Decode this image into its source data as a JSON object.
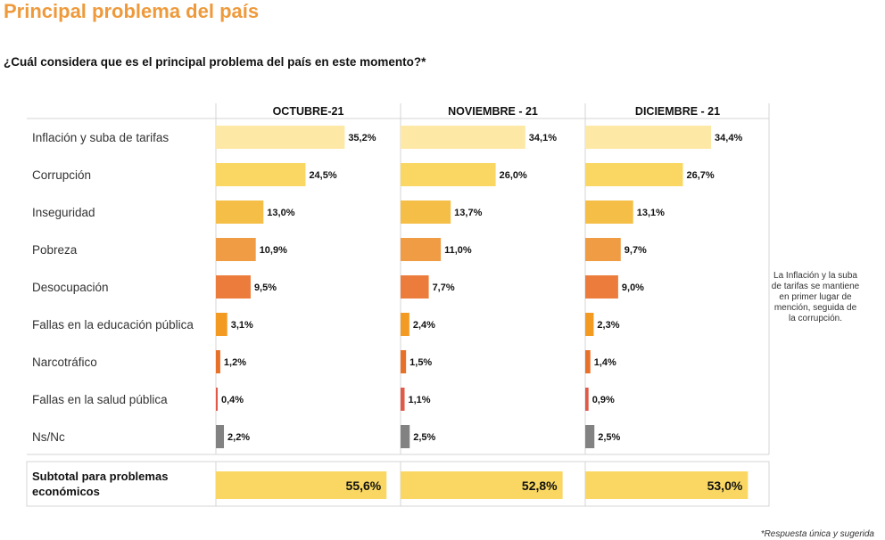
{
  "title": "Principal problema del país",
  "question": "¿Cuál considera que es el principal problema del país en este momento?*",
  "note": "La Inflación y la suba de tarifas se mantiene en primer lugar de mención, seguida de la corrupción.",
  "footnote": "*Respuesta única y sugerida",
  "chart_data": {
    "type": "bar",
    "orientation": "horizontal",
    "grid": false,
    "categories": [
      "Inflación y suba de tarifas",
      "Corrupción",
      "Inseguridad",
      "Pobreza",
      "Desocupación",
      "Fallas en la educación pública",
      "Narcotráfico",
      "Fallas en la salud pública",
      "Ns/Nc"
    ],
    "colors": [
      "#fde8a6",
      "#f9d762",
      "#f5bf47",
      "#ef9c45",
      "#ec7c3b",
      "#f39a22",
      "#e8712a",
      "#e05a48",
      "#828282"
    ],
    "series": [
      {
        "name": "OCTUBRE-21",
        "values": [
          35.2,
          24.5,
          13.0,
          10.9,
          9.5,
          3.1,
          1.2,
          0.4,
          2.2
        ],
        "labels": [
          "35,2%",
          "24,5%",
          "13,0%",
          "10,9%",
          "9,5%",
          "3,1%",
          "1,2%",
          "0,4%",
          "2,2%"
        ],
        "subtotal": 55.6,
        "subtotal_label": "55,6%"
      },
      {
        "name": "NOVIEMBRE - 21",
        "values": [
          34.1,
          26.0,
          13.7,
          11.0,
          7.7,
          2.4,
          1.5,
          1.1,
          2.5
        ],
        "labels": [
          "34,1%",
          "26,0%",
          "13,7%",
          "11,0%",
          "7,7%",
          "2,4%",
          "1,5%",
          "1,1%",
          "2,5%"
        ],
        "subtotal": 52.8,
        "subtotal_label": "52,8%"
      },
      {
        "name": "DICIEMBRE - 21",
        "values": [
          34.4,
          26.7,
          13.1,
          9.7,
          9.0,
          2.3,
          1.4,
          0.9,
          2.5
        ],
        "labels": [
          "34,4%",
          "26,7%",
          "13,1%",
          "9,7%",
          "9,0%",
          "2,3%",
          "1,4%",
          "0,9%",
          "2,5%"
        ],
        "subtotal": 53.0,
        "subtotal_label": "53,0%"
      }
    ],
    "subtotal_label": "Subtotal para problemas económicos",
    "subtotal_color": "#f9d762",
    "xlim": [
      0,
      60
    ]
  }
}
